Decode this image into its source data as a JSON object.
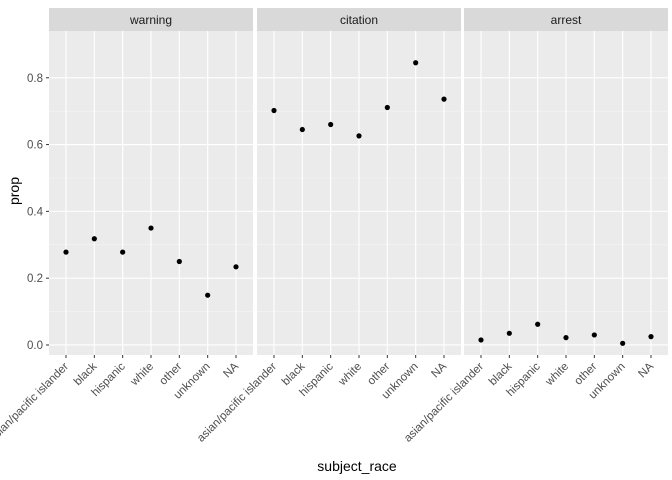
{
  "chart_data": {
    "type": "scatter",
    "facets": [
      "warning",
      "citation",
      "arrest"
    ],
    "categories": [
      "asian/pacific islander",
      "black",
      "hispanic",
      "white",
      "other",
      "unknown",
      "NA"
    ],
    "series": [
      {
        "facet": "warning",
        "values": [
          0.278,
          0.318,
          0.278,
          0.35,
          0.25,
          0.149,
          0.234
        ]
      },
      {
        "facet": "citation",
        "values": [
          0.702,
          0.645,
          0.66,
          0.626,
          0.711,
          0.845,
          0.736
        ]
      },
      {
        "facet": "arrest",
        "values": [
          0.015,
          0.035,
          0.062,
          0.022,
          0.03,
          0.005,
          0.025
        ]
      }
    ],
    "xlabel": "subject_race",
    "ylabel": "prop",
    "ylim": [
      -0.03,
      0.94
    ],
    "yticks": [
      0.0,
      0.2,
      0.4,
      0.6,
      0.8
    ],
    "ytick_labels": [
      "0.0",
      "0.2",
      "0.4",
      "0.6",
      "0.8"
    ],
    "grid": true,
    "colors": {
      "panel_bg": "#ebebeb",
      "strip_bg": "#d9d9d9",
      "grid_major": "#ffffff",
      "point": "#000000"
    }
  }
}
